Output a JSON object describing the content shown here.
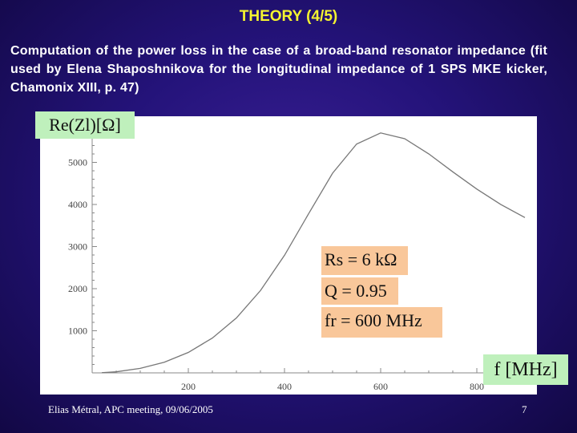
{
  "slide": {
    "title": "THEORY (4/5)",
    "subtitle": "Computation of the power loss in the case of a broad-band resonator impedance (fit used by Elena Shaposhnikova for the longitudinal impedance of 1 SPS MKE kicker, Chamonix XIII, p. 47)",
    "footer_left": "Elias Métral, APC meeting, 09/06/2005",
    "page_number": "7",
    "y_label": "Re(Zl)[Ω]",
    "x_label": "f [MHz]",
    "params": {
      "rs": "Rs = 6 kΩ",
      "q": "Q = 0.95",
      "fr": "fr = 600 MHz"
    }
  },
  "chart_data": {
    "type": "line",
    "xlim": [
      0,
      900
    ],
    "ylim": [
      0,
      6000
    ],
    "x_ticks": [
      "200",
      "400",
      "600",
      "800"
    ],
    "y_ticks": [
      "1000",
      "2000",
      "3000",
      "4000",
      "5000"
    ],
    "grid": false,
    "series": [
      {
        "x": [
          20,
          50,
          100,
          150,
          200,
          250,
          300,
          350,
          400,
          450,
          500,
          550,
          600,
          650,
          700,
          750,
          800,
          850,
          900
        ],
        "y": [
          4,
          25,
          106,
          253,
          485,
          826,
          1305,
          1954,
          2792,
          3778,
          4742,
          5436,
          5700,
          5562,
          5201,
          4776,
          4365,
          3999,
          3690
        ]
      }
    ],
    "colors": {
      "plot_bg": "#ffffff",
      "curve": "#777777",
      "axis": "#888888"
    }
  }
}
